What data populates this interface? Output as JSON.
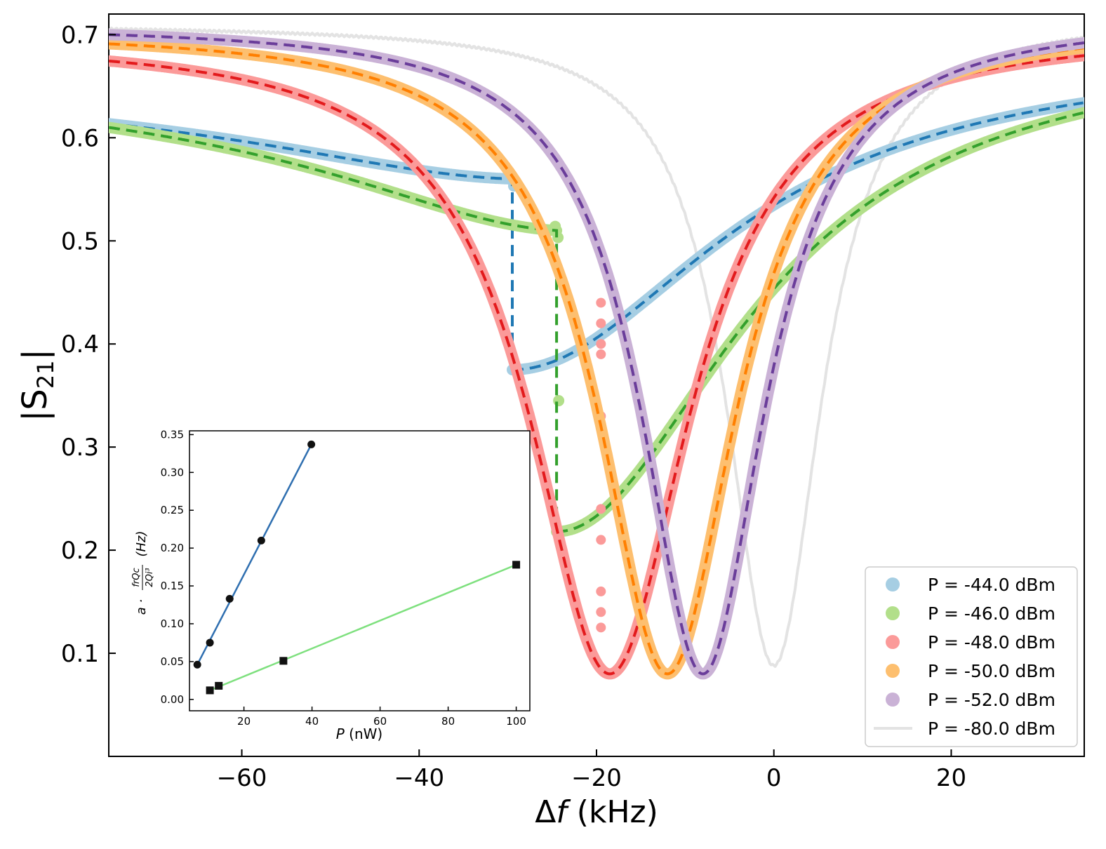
{
  "chart_data": [
    {
      "type": "scatter",
      "title": "",
      "xlabel": "Δf (kHz)",
      "ylabel": "|S21|",
      "ylabel_main": "|S",
      "ylabel_sub": "21",
      "ylabel_end": "|",
      "xlabel_delta": "Δ",
      "xlabel_f": "f",
      "xlabel_unit": " (kHz)",
      "xlim": [
        -75,
        35
      ],
      "ylim": [
        0,
        0.72
      ],
      "xticks": [
        -60,
        -40,
        -20,
        0,
        20
      ],
      "xtick_labels": [
        "−60",
        "−40",
        "−20",
        "0",
        "20"
      ],
      "yticks": [
        0.1,
        0.2,
        0.3,
        0.4,
        0.5,
        0.6,
        0.7
      ],
      "ytick_labels": [
        "0.1",
        "0.2",
        "0.3",
        "0.4",
        "0.5",
        "0.6",
        "0.7"
      ],
      "legend_position": "bottom-right",
      "series": [
        {
          "name": "P = -44.0 dBm",
          "style": "data+fit",
          "bistable": true,
          "f_peak": -29.5,
          "f_jump": -29.5,
          "y_top": 0.56,
          "y_bottom": 0.375,
          "min_y": 0.375,
          "asym_left": 0.672,
          "asym_right": 0.685,
          "width": 30,
          "color_data": "#a6cee3",
          "color_fit": "#1f78b4"
        },
        {
          "name": "P = -46.0 dBm",
          "style": "data+fit",
          "bistable": true,
          "f_peak": -24.5,
          "f_jump": -24.5,
          "y_top": 0.51,
          "y_bottom": 0.218,
          "min_y": 0.218,
          "asym_left": 0.685,
          "asym_right": 0.695,
          "width": 26,
          "color_data": "#b2df8a",
          "color_fit": "#33a02c"
        },
        {
          "name": "P = -48.0 dBm",
          "style": "data+fit",
          "bistable": false,
          "f0": -18.5,
          "min_y": 0.08,
          "asym_left": 0.697,
          "asym_right": 0.705,
          "width": 11,
          "color_data": "#fb9a99",
          "color_fit": "#e31a1c"
        },
        {
          "name": "P = -50.0 dBm",
          "style": "data+fit",
          "bistable": false,
          "f0": -12.0,
          "min_y": 0.08,
          "asym_left": 0.705,
          "asym_right": 0.712,
          "width": 9.5,
          "color_data": "#fdbf6f",
          "color_fit": "#ff7f00"
        },
        {
          "name": "P = -52.0 dBm",
          "style": "data+fit",
          "bistable": false,
          "f0": -8.0,
          "min_y": 0.08,
          "asym_left": 0.71,
          "asym_right": 0.716,
          "width": 8.5,
          "color_data": "#cab2d6",
          "color_fit": "#6a3d9a"
        },
        {
          "name": "P = -80.0 dBm",
          "style": "line",
          "bistable": false,
          "f0": 0.0,
          "min_y": 0.088,
          "asym_left": 0.71,
          "asym_right": 0.718,
          "width": 6.5,
          "color_data": "#e3e3e3"
        }
      ]
    },
    {
      "type": "scatter",
      "title": "",
      "xlabel": "P (nW)",
      "xlabel_p": "P",
      "xlabel_unit": " (nW)",
      "ylabel": "a · frQc/2Qi³ (Hz)",
      "ylabel_prefix": "a · ",
      "ylabel_num": "frQc",
      "ylabel_den": "2Qi³",
      "ylabel_unit": "(Hz)",
      "xlim": [
        4,
        104
      ],
      "ylim": [
        -0.015,
        0.355
      ],
      "xticks": [
        20,
        40,
        60,
        80,
        100
      ],
      "xtick_labels": [
        "20",
        "40",
        "60",
        "80",
        "100"
      ],
      "yticks": [
        0.0,
        0.05,
        0.1,
        0.15,
        0.2,
        0.25,
        0.3,
        0.35
      ],
      "ytick_labels": [
        "0.00",
        "0.05",
        "0.10",
        "0.15",
        "0.20",
        "0.25",
        "0.30",
        "0.35"
      ],
      "series": [
        {
          "name": "circles",
          "marker": "circle",
          "x": [
            6.3,
            10,
            15.8,
            25.1,
            39.8
          ],
          "y": [
            0.046,
            0.075,
            0.133,
            0.21,
            0.337
          ],
          "fit_x": [
            6.3,
            39.8
          ],
          "fit_y": [
            0.046,
            0.337
          ],
          "line_color": "#2f6fb0"
        },
        {
          "name": "squares",
          "marker": "square",
          "x": [
            10,
            12.6,
            31.6,
            100
          ],
          "y": [
            0.012,
            0.018,
            0.051,
            0.178
          ],
          "fit_x": [
            10,
            100
          ],
          "fit_y": [
            0.012,
            0.178
          ],
          "line_color": "#7ee07e"
        }
      ]
    }
  ]
}
